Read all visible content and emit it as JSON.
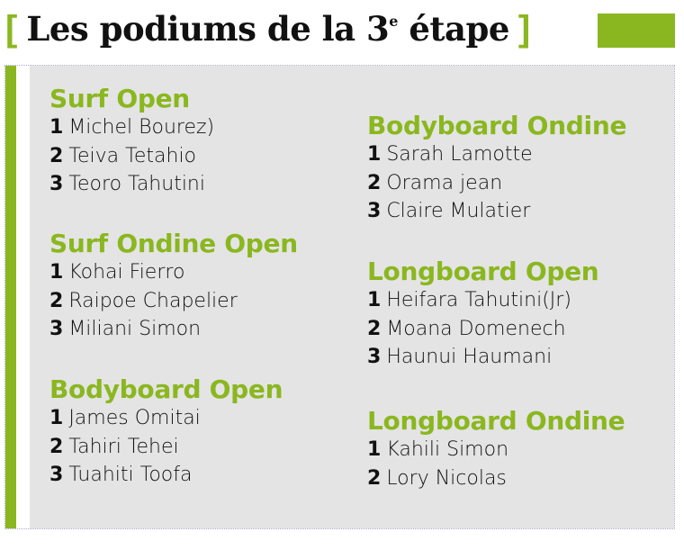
{
  "title": {
    "open_bracket": "[",
    "text": "Les podiums de la 3",
    "superscript": "e",
    "text_after": " étape",
    "close_bracket": "]"
  },
  "colors": {
    "accent": "#8ab71f",
    "panel": "#e4e4e4",
    "text": "#111111"
  },
  "columns": [
    [
      {
        "heading": "Surf Open",
        "results": [
          {
            "rank": "1",
            "name": "Michel Bourez)"
          },
          {
            "rank": "2",
            "name": "Teiva Tetahio"
          },
          {
            "rank": "3",
            "name": "Teoro Tahutini"
          }
        ]
      },
      {
        "heading": "Surf Ondine Open",
        "results": [
          {
            "rank": "1",
            "name": "Kohai Fierro"
          },
          {
            "rank": "2",
            "name": "Raipoe Chapelier"
          },
          {
            "rank": "3",
            "name": "Miliani Simon"
          }
        ]
      },
      {
        "heading": "Bodyboard Open",
        "results": [
          {
            "rank": "1",
            "name": "James Omitai"
          },
          {
            "rank": "2",
            "name": "Tahiri Tehei"
          },
          {
            "rank": "3",
            "name": "Tuahiti Toofa"
          }
        ]
      }
    ],
    [
      {
        "heading": "Bodyboard Ondine",
        "results": [
          {
            "rank": "1",
            "name": "Sarah Lamotte"
          },
          {
            "rank": "2",
            "name": "Orama jean"
          },
          {
            "rank": "3",
            "name": "Claire Mulatier"
          }
        ]
      },
      {
        "heading": "Longboard Open",
        "results": [
          {
            "rank": "1",
            "name": "Heifara Tahutini(Jr)"
          },
          {
            "rank": "2",
            "name": "Moana Domenech"
          },
          {
            "rank": "3",
            "name": "Haunui Haumani"
          }
        ]
      },
      {
        "heading": "Longboard Ondine",
        "results": [
          {
            "rank": "1",
            "name": "Kahili Simon"
          },
          {
            "rank": "2",
            "name": "Lory Nicolas"
          }
        ]
      }
    ]
  ]
}
